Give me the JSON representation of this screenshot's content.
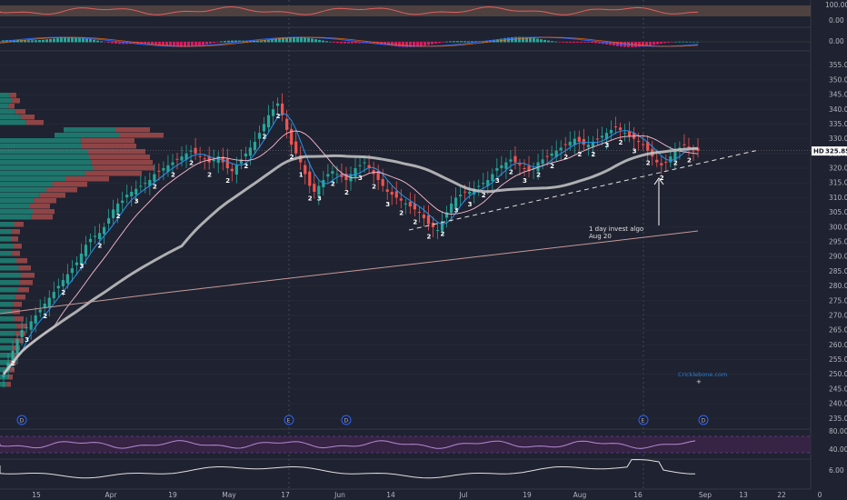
{
  "symbol": "HD",
  "last_price": "325.85",
  "annotation": {
    "line1": "1 day invest algo",
    "line2": "Aug 20"
  },
  "watermark": "Cricklebone.com",
  "colors": {
    "background": "#1f2230",
    "up": "#26a69a",
    "down": "#ef5350",
    "accent": "#b38bd6"
  },
  "x_axis": {
    "labels": [
      "15",
      "Apr",
      "19",
      "May",
      "17",
      "Jun",
      "14",
      "Jul",
      "19",
      "Aug",
      "16",
      "Sep",
      "13",
      "22",
      "0"
    ]
  },
  "price_axis": {
    "labels": [
      "355.00",
      "350.00",
      "345.00",
      "340.00",
      "335.00",
      "330.00",
      "325.00",
      "320.00",
      "315.00",
      "310.00",
      "305.00",
      "300.00",
      "295.00",
      "290.00",
      "285.00",
      "280.00",
      "275.00",
      "270.00",
      "265.00",
      "260.00",
      "255.00",
      "250.00",
      "245.00",
      "240.00",
      "235.00"
    ]
  },
  "osc_top_labels": [
    "100.00",
    "0.00"
  ],
  "macd_labels": [
    "0.00"
  ],
  "rsi_labels": [
    "80.00",
    "40.00"
  ],
  "bottom_labels": [
    "6.00"
  ],
  "event_markers": [
    {
      "label": "D",
      "kind": "dividend"
    },
    {
      "label": "E",
      "kind": "earnings"
    },
    {
      "label": "D",
      "kind": "dividend"
    },
    {
      "label": "E",
      "kind": "earnings"
    },
    {
      "label": "D",
      "kind": "dividend"
    }
  ],
  "chart_data": {
    "type": "candlestick",
    "symbol": "HD",
    "y_range": [
      232,
      358
    ],
    "last_price": 325.85,
    "closes": [
      250,
      254,
      258,
      262,
      265,
      266,
      268,
      270,
      272,
      274,
      276,
      278,
      280,
      282,
      284,
      286,
      288,
      291,
      294,
      296,
      297,
      298,
      300,
      303,
      306,
      308,
      309,
      311,
      312,
      313,
      314,
      315,
      316,
      318,
      319,
      320,
      321,
      322,
      323,
      324,
      325,
      326,
      325,
      324,
      323,
      322,
      323,
      324,
      322,
      320,
      319,
      321,
      323,
      325,
      327,
      329,
      332,
      335,
      338,
      340,
      342,
      338,
      333,
      328,
      325,
      322,
      318,
      314,
      312,
      314,
      316,
      318,
      319,
      318,
      317,
      316,
      318,
      320,
      321,
      322,
      320,
      318,
      316,
      314,
      312,
      311,
      310,
      309,
      308,
      307,
      306,
      305,
      303,
      301,
      300,
      299,
      302,
      305,
      308,
      310,
      311,
      312,
      312,
      313,
      314,
      315,
      316,
      318,
      320,
      321,
      322,
      323,
      322,
      321,
      320,
      319,
      320,
      322,
      323,
      324,
      325,
      326,
      327,
      328,
      329,
      330,
      329,
      328,
      328,
      329,
      330,
      331,
      332,
      333,
      334,
      333,
      332,
      331,
      330,
      329,
      328,
      326,
      324,
      322,
      321,
      322,
      324,
      326,
      327,
      328,
      327,
      326,
      325.85
    ],
    "signals": [
      {
        "index": 2,
        "label": "2"
      },
      {
        "index": 5,
        "label": "3"
      },
      {
        "index": 9,
        "label": "2"
      },
      {
        "index": 13,
        "label": "2"
      },
      {
        "index": 17,
        "label": "3"
      },
      {
        "index": 21,
        "label": "2"
      },
      {
        "index": 25,
        "label": "2"
      },
      {
        "index": 29,
        "label": "3"
      },
      {
        "index": 33,
        "label": "2"
      },
      {
        "index": 37,
        "label": "2"
      },
      {
        "index": 41,
        "label": "2"
      },
      {
        "index": 45,
        "label": "2"
      },
      {
        "index": 49,
        "label": "2"
      },
      {
        "index": 53,
        "label": "2"
      },
      {
        "index": 57,
        "label": "2"
      },
      {
        "index": 60,
        "label": "2"
      },
      {
        "index": 63,
        "label": "2"
      },
      {
        "index": 65,
        "label": "1"
      },
      {
        "index": 67,
        "label": "2"
      },
      {
        "index": 69,
        "label": "3"
      },
      {
        "index": 72,
        "label": "2"
      },
      {
        "index": 75,
        "label": "2"
      },
      {
        "index": 78,
        "label": "3"
      },
      {
        "index": 81,
        "label": "2"
      },
      {
        "index": 84,
        "label": "3"
      },
      {
        "index": 87,
        "label": "2"
      },
      {
        "index": 90,
        "label": "2"
      },
      {
        "index": 93,
        "label": "2"
      },
      {
        "index": 96,
        "label": "2"
      },
      {
        "index": 99,
        "label": "3"
      },
      {
        "index": 102,
        "label": "3"
      },
      {
        "index": 105,
        "label": "2"
      },
      {
        "index": 108,
        "label": "3"
      },
      {
        "index": 111,
        "label": "2"
      },
      {
        "index": 114,
        "label": "3"
      },
      {
        "index": 117,
        "label": "2"
      },
      {
        "index": 120,
        "label": "2"
      },
      {
        "index": 123,
        "label": "2"
      },
      {
        "index": 126,
        "label": "2"
      },
      {
        "index": 129,
        "label": "2"
      },
      {
        "index": 132,
        "label": "3"
      },
      {
        "index": 135,
        "label": "2"
      },
      {
        "index": 138,
        "label": "3"
      },
      {
        "index": 141,
        "label": "2"
      },
      {
        "index": 144,
        "label": "2"
      },
      {
        "index": 147,
        "label": "2"
      },
      {
        "index": 150,
        "label": "2"
      }
    ]
  }
}
